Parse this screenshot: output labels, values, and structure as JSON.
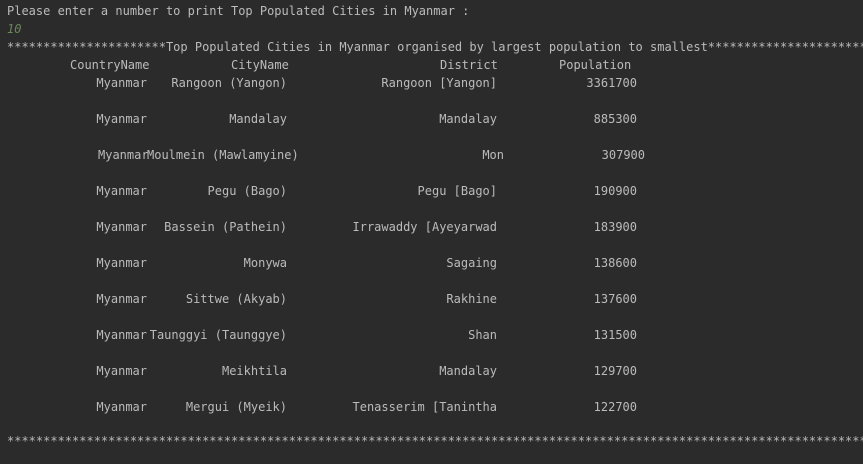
{
  "console": {
    "prompt": "Please enter a number to print Top Populated Cities in Myanmar :",
    "user_input": "10",
    "header_line": "**********************Top Populated Cities in Myanmar organised by largest population to smallest**********************",
    "footer_line": "*************************************************************************************************************************",
    "columns": {
      "country": "CountryName",
      "city": "CityName",
      "district": "District",
      "population": "Population"
    },
    "rows": [
      {
        "country": "Myanmar",
        "city": "Rangoon (Yangon)",
        "district": "Rangoon [Yangon]",
        "population": "3361700"
      },
      {
        "country": "Myanmar",
        "city": "Mandalay",
        "district": "Mandalay",
        "population": "885300"
      },
      {
        "country": "Myanmar",
        "city": "Moulmein (Mawlamyine)",
        "district": "Mon",
        "population": "307900"
      },
      {
        "country": "Myanmar",
        "city": "Pegu (Bago)",
        "district": "Pegu [Bago]",
        "population": "190900"
      },
      {
        "country": "Myanmar",
        "city": "Bassein (Pathein)",
        "district": "Irrawaddy [Ayeyarwad",
        "population": "183900"
      },
      {
        "country": "Myanmar",
        "city": "Monywa",
        "district": "Sagaing",
        "population": "138600"
      },
      {
        "country": "Myanmar",
        "city": "Sittwe (Akyab)",
        "district": "Rakhine",
        "population": "137600"
      },
      {
        "country": "Myanmar",
        "city": "Taunggyi (Taunggye)",
        "district": "Shan",
        "population": "131500"
      },
      {
        "country": "Myanmar",
        "city": "Meikhtila",
        "district": "Mandalay",
        "population": "129700"
      },
      {
        "country": "Myanmar",
        "city": "Mergui (Myeik)",
        "district": "Tenasserim [Tanintha",
        "population": "122700"
      }
    ]
  }
}
